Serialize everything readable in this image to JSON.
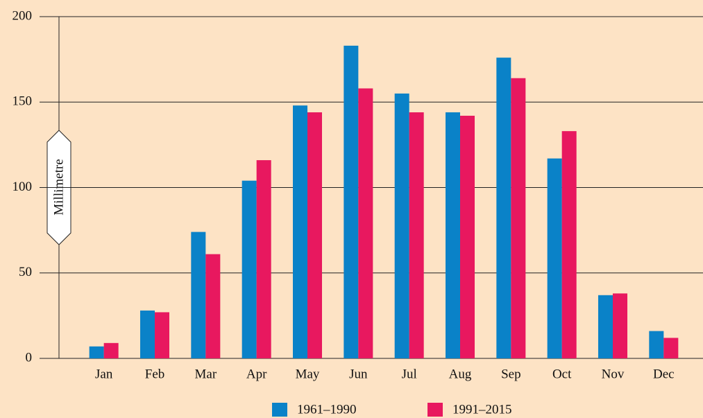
{
  "chart_data": {
    "type": "bar",
    "y_label": "Millimetre",
    "categories": [
      "Jan",
      "Feb",
      "Mar",
      "Apr",
      "May",
      "Jun",
      "Jul",
      "Aug",
      "Sep",
      "Oct",
      "Nov",
      "Dec"
    ],
    "series": [
      {
        "name": "1961–1990",
        "color": "#0a82c8",
        "values": [
          7,
          28,
          74,
          104,
          148,
          183,
          155,
          144,
          176,
          117,
          37,
          16
        ]
      },
      {
        "name": "1991–2015",
        "color": "#e8185f",
        "values": [
          9,
          27,
          61,
          116,
          144,
          158,
          144,
          142,
          164,
          133,
          38,
          12
        ]
      }
    ],
    "ylim": [
      0,
      200
    ],
    "yticks": [
      0,
      50,
      100,
      150,
      200
    ],
    "grid": true
  }
}
